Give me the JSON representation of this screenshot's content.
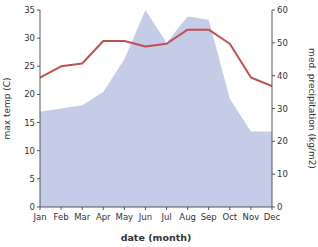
{
  "chart_data": {
    "type": "line",
    "categories": [
      "Jan",
      "Feb",
      "Mar",
      "Apr",
      "May",
      "Jun",
      "Jul",
      "Aug",
      "Sep",
      "Oct",
      "Nov",
      "Dec"
    ],
    "series": [
      {
        "type": "area",
        "axis": "y2",
        "color": "#c5cce8",
        "values": [
          29,
          30,
          31,
          35,
          45,
          60,
          50,
          58,
          57,
          33,
          23,
          23
        ]
      },
      {
        "type": "line",
        "color": "#c0504d",
        "values": [
          23,
          25,
          25.5,
          29.5,
          29.5,
          28.5,
          29,
          31.5,
          31.5,
          29,
          23,
          21.5
        ]
      }
    ],
    "xlabel": "date (month)",
    "ylabel": "max temp (C)",
    "y2label": "med. precipitation (kg/m2)",
    "ylim": [
      0,
      35
    ],
    "yticks": [
      0,
      5,
      10,
      15,
      20,
      25,
      30,
      35
    ],
    "y2lim": [
      0,
      60
    ],
    "y2ticks": [
      0,
      10,
      20,
      30,
      40,
      50,
      60
    ],
    "grid": false
  }
}
